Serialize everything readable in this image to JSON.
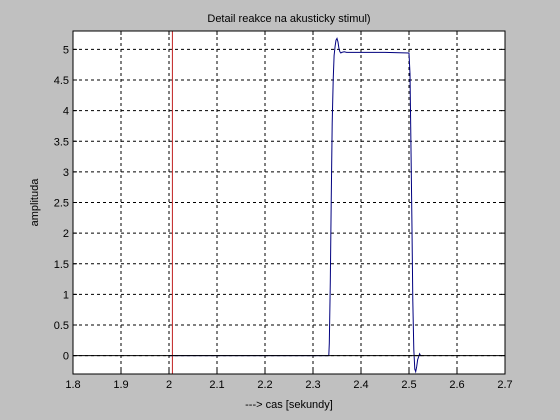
{
  "chart_data": {
    "type": "line",
    "title": "Detail reakce na akusticky stimul)",
    "xlabel": "---> cas [sekundy]",
    "ylabel": "amplituda",
    "xlim": [
      1.8,
      2.7
    ],
    "ylim": [
      -0.3,
      5.3
    ],
    "x_ticks": [
      1.8,
      1.9,
      2.0,
      2.1,
      2.2,
      2.3,
      2.4,
      2.5,
      2.6,
      2.7
    ],
    "x_tick_labels": [
      "1.8",
      "1.9",
      "2",
      "2.1",
      "2.2",
      "2.3",
      "2.4",
      "2.5",
      "2.6",
      "2.7"
    ],
    "y_ticks": [
      0,
      0.5,
      1,
      1.5,
      2,
      2.5,
      3,
      3.5,
      4,
      4.5,
      5
    ],
    "y_tick_labels": [
      "0",
      "0.5",
      "1",
      "1.5",
      "2",
      "2.5",
      "3",
      "3.5",
      "4",
      "4.5",
      "5"
    ],
    "grid": true,
    "background_color": "#c0c0c0",
    "axes_color": "#ffffff",
    "series": [
      {
        "color": "#00007f",
        "x": [
          2.0,
          2.333,
          2.334,
          2.336,
          2.338,
          2.34,
          2.342,
          2.344,
          2.346,
          2.348,
          2.35,
          2.352,
          2.354,
          2.356,
          2.358,
          2.36,
          2.365,
          2.37,
          2.38,
          2.4,
          2.45,
          2.5,
          2.502,
          2.504,
          2.506,
          2.508,
          2.51,
          2.512,
          2.514,
          2.516,
          2.518,
          2.52,
          2.522,
          2.524,
          2.526
        ],
        "y": [
          0.0,
          0.0,
          0.2,
          1.2,
          2.5,
          3.8,
          4.5,
          4.9,
          5.05,
          5.15,
          5.18,
          5.12,
          5.02,
          4.96,
          4.94,
          4.95,
          4.96,
          4.95,
          4.95,
          4.95,
          4.95,
          4.94,
          4.6,
          3.5,
          2.2,
          0.9,
          0.1,
          -0.22,
          -0.26,
          -0.18,
          -0.07,
          -0.02,
          0.03,
          0.0,
          0.0
        ]
      },
      {
        "color": "#bf2020",
        "x": [
          2.007,
          2.007
        ],
        "y": [
          -0.3,
          5.3
        ]
      },
      {
        "color": "#000000",
        "x": [
          1.8,
          2.7
        ],
        "y": [
          0.0,
          0.0
        ]
      }
    ]
  }
}
